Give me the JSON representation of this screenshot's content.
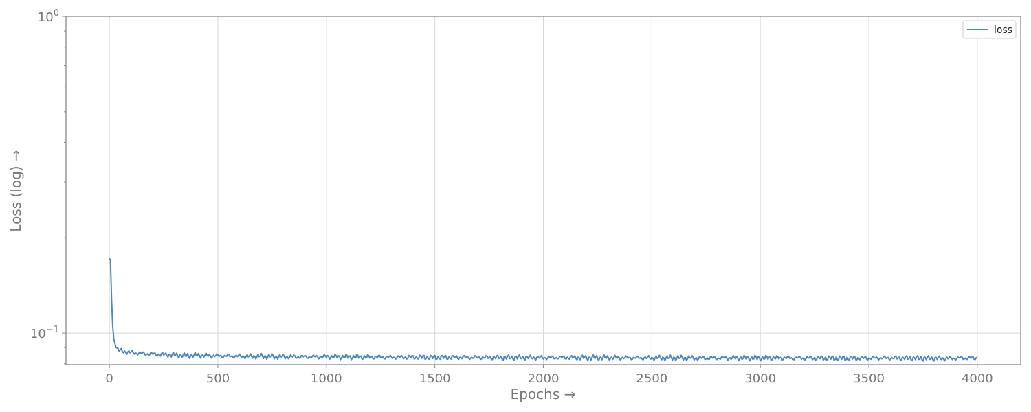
{
  "chart_data": {
    "type": "line",
    "title": "",
    "xlabel": "Epochs →",
    "ylabel": "Loss (log) →",
    "y_scale": "log",
    "xlim": [
      -200,
      4200
    ],
    "ylim": [
      0.0795,
      1.0
    ],
    "x_ticks": [
      0,
      500,
      1000,
      1500,
      2000,
      2500,
      3000,
      3500,
      4000
    ],
    "x_tick_labels": [
      "0",
      "500",
      "1000",
      "1500",
      "2000",
      "2500",
      "3000",
      "3500",
      "4000"
    ],
    "y_major_ticks": [
      {
        "value": 1.0,
        "base": "10",
        "exp": "0"
      },
      {
        "value": 0.1,
        "base": "10",
        "exp": "−1"
      }
    ],
    "grid": true,
    "legend_position": "top-right",
    "colors": {
      "line": "#4a86c2",
      "axis": "#888888",
      "grid": "#d8d8d8",
      "text": "#777777"
    },
    "series": [
      {
        "name": "loss",
        "x": [
          0,
          5,
          10,
          15,
          20,
          30,
          40,
          50,
          60,
          70,
          80,
          100,
          150,
          200,
          250,
          300,
          350,
          400,
          450,
          500,
          550,
          600,
          650,
          700,
          750,
          800,
          900,
          1000,
          1100,
          1200,
          1300,
          1400,
          1500,
          1600,
          1700,
          1800,
          1900,
          2000,
          2100,
          2200,
          2300,
          2400,
          2500,
          2600,
          2700,
          2800,
          2900,
          3000,
          3100,
          3200,
          3300,
          3400,
          3500,
          3600,
          3700,
          3800,
          3850,
          3900,
          4000
        ],
        "y": [
          0.172,
          0.17,
          0.128,
          0.106,
          0.096,
          0.09,
          0.0886,
          0.088,
          0.0876,
          0.0874,
          0.0872,
          0.0868,
          0.0862,
          0.0858,
          0.0855,
          0.0852,
          0.0848,
          0.0851,
          0.0849,
          0.0847,
          0.0846,
          0.0845,
          0.0844,
          0.0845,
          0.0843,
          0.0842,
          0.0841,
          0.0842,
          0.0841,
          0.084,
          0.0839,
          0.0839,
          0.0838,
          0.0838,
          0.0837,
          0.0837,
          0.0837,
          0.0836,
          0.0837,
          0.0836,
          0.0836,
          0.0835,
          0.0835,
          0.0835,
          0.0834,
          0.0834,
          0.0834,
          0.0834,
          0.0835,
          0.0834,
          0.0834,
          0.0833,
          0.0834,
          0.0834,
          0.0833,
          0.0832,
          0.0831,
          0.0833,
          0.0834
        ]
      }
    ]
  }
}
